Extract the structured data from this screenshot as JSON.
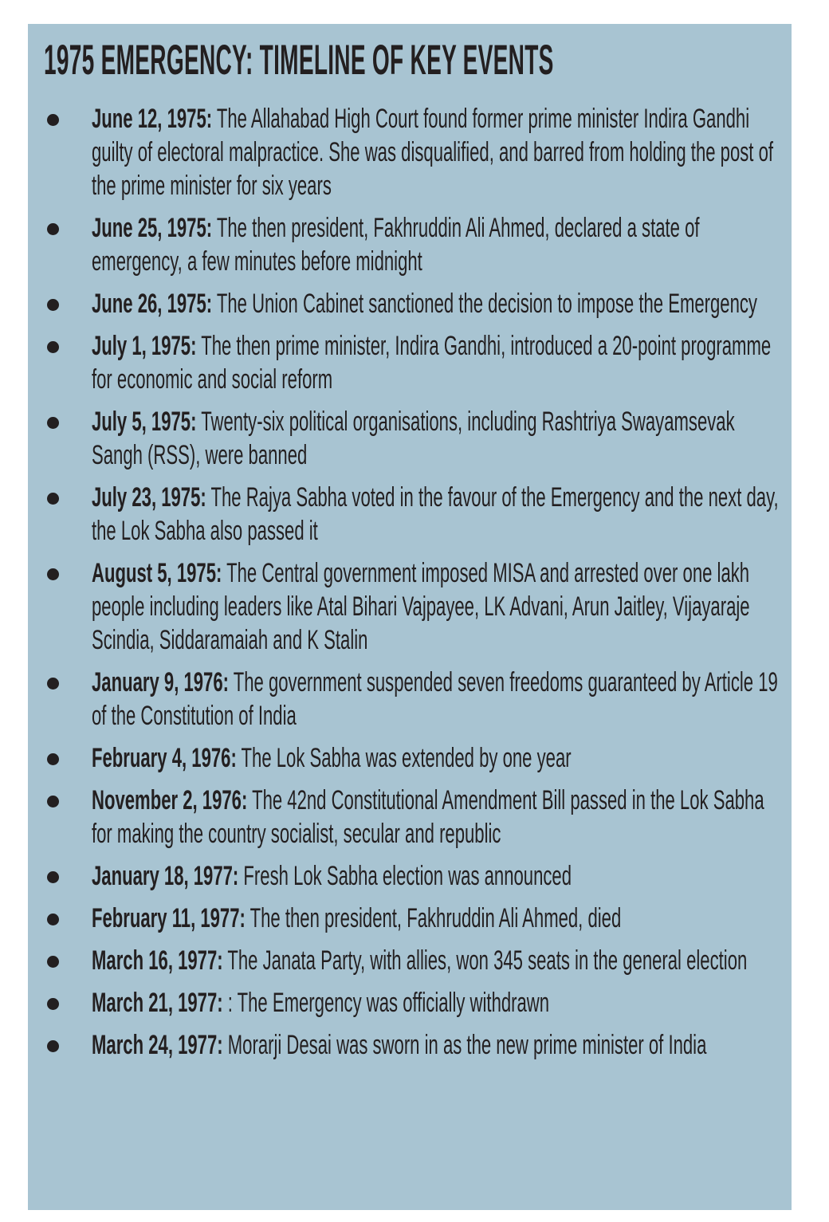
{
  "colors": {
    "background": "#a8c4d2",
    "text": "#231f20"
  },
  "title": "1975 EMERGENCY: TIMELINE OF KEY EVENTS",
  "events": [
    {
      "date": "June 12, 1975:",
      "text": " The Allahabad High Court found former prime minister Indira Gandhi guilty of electoral malpractice. She was disqualified, and barred from holding the post of the prime minister for six years"
    },
    {
      "date": "June 25, 1975:",
      "text": " The then president, Fakhruddin Ali Ahmed, declared a state of emergency, a few minutes before midnight"
    },
    {
      "date": "June 26, 1975:",
      "text": " The Union Cabinet sanctioned the decision to impose the Emergency"
    },
    {
      "date": "July 1, 1975:",
      "text": " The then prime minister, Indira Gandhi, introduced a 20-point programme for economic and social reform"
    },
    {
      "date": "July 5, 1975:",
      "text": " Twenty-six political organisations, including Rashtriya Swayamsevak Sangh (RSS), were banned"
    },
    {
      "date": "July 23, 1975:",
      "text": " The Rajya Sabha voted in the favour of the Emergency and the next day, the Lok Sabha also passed it"
    },
    {
      "date": "August 5, 1975:",
      "text": " The Central government imposed MISA and arrested over one lakh people including leaders like Atal Bihari Vajpayee, LK Advani, Arun Jaitley, Vijayaraje Scindia, Siddaramaiah and K Stalin"
    },
    {
      "date": "January 9, 1976:",
      "text": " The government suspended seven freedoms guaranteed by Article 19 of the Constitution of India"
    },
    {
      "date": "February 4, 1976:",
      "text": " The Lok Sabha was extended by one year"
    },
    {
      "date": "November 2, 1976:",
      "text": " The 42nd Constitutional Amendment Bill passed in the Lok Sabha for making the country socialist, secular and republic"
    },
    {
      "date": " January 18, 1977:",
      "text": " Fresh Lok Sabha election was announced"
    },
    {
      "date": "February 11, 1977:",
      "text": " The then president, Fakhruddin Ali Ahmed, died"
    },
    {
      "date": "March 16, 1977:",
      "text": " The Janata Party, with allies, won 345 seats in the general election"
    },
    {
      "date": "March 21, 1977:",
      "text": " : The Emergency was officially withdrawn"
    },
    {
      "date": "March 24, 1977:",
      "text": "  Morarji Desai was sworn in as the new prime minister of India"
    }
  ]
}
